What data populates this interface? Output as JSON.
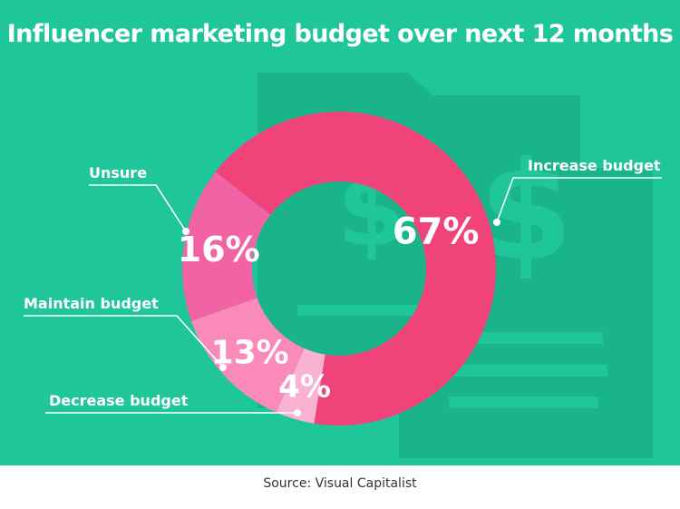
{
  "chart_data": {
    "type": "pie",
    "title": "Influencer marketing budget over next 12 months",
    "categories": [
      "Increase budget",
      "Decrease budget",
      "Maintain budget",
      "Unsure"
    ],
    "values": [
      67,
      4,
      13,
      16
    ],
    "value_labels": [
      "67%",
      "4%",
      "13%",
      "16%"
    ],
    "colors": [
      "#f0437a",
      "#f9b2d1",
      "#f98ab9",
      "#f163a5"
    ],
    "donut": true
  },
  "source": "Source: Visual Capitalist",
  "colors": {
    "background": "#1fc699",
    "decoration": "#19b48a",
    "text": "#ffffff"
  },
  "decoration_icon": "invoice-dollar-icon"
}
